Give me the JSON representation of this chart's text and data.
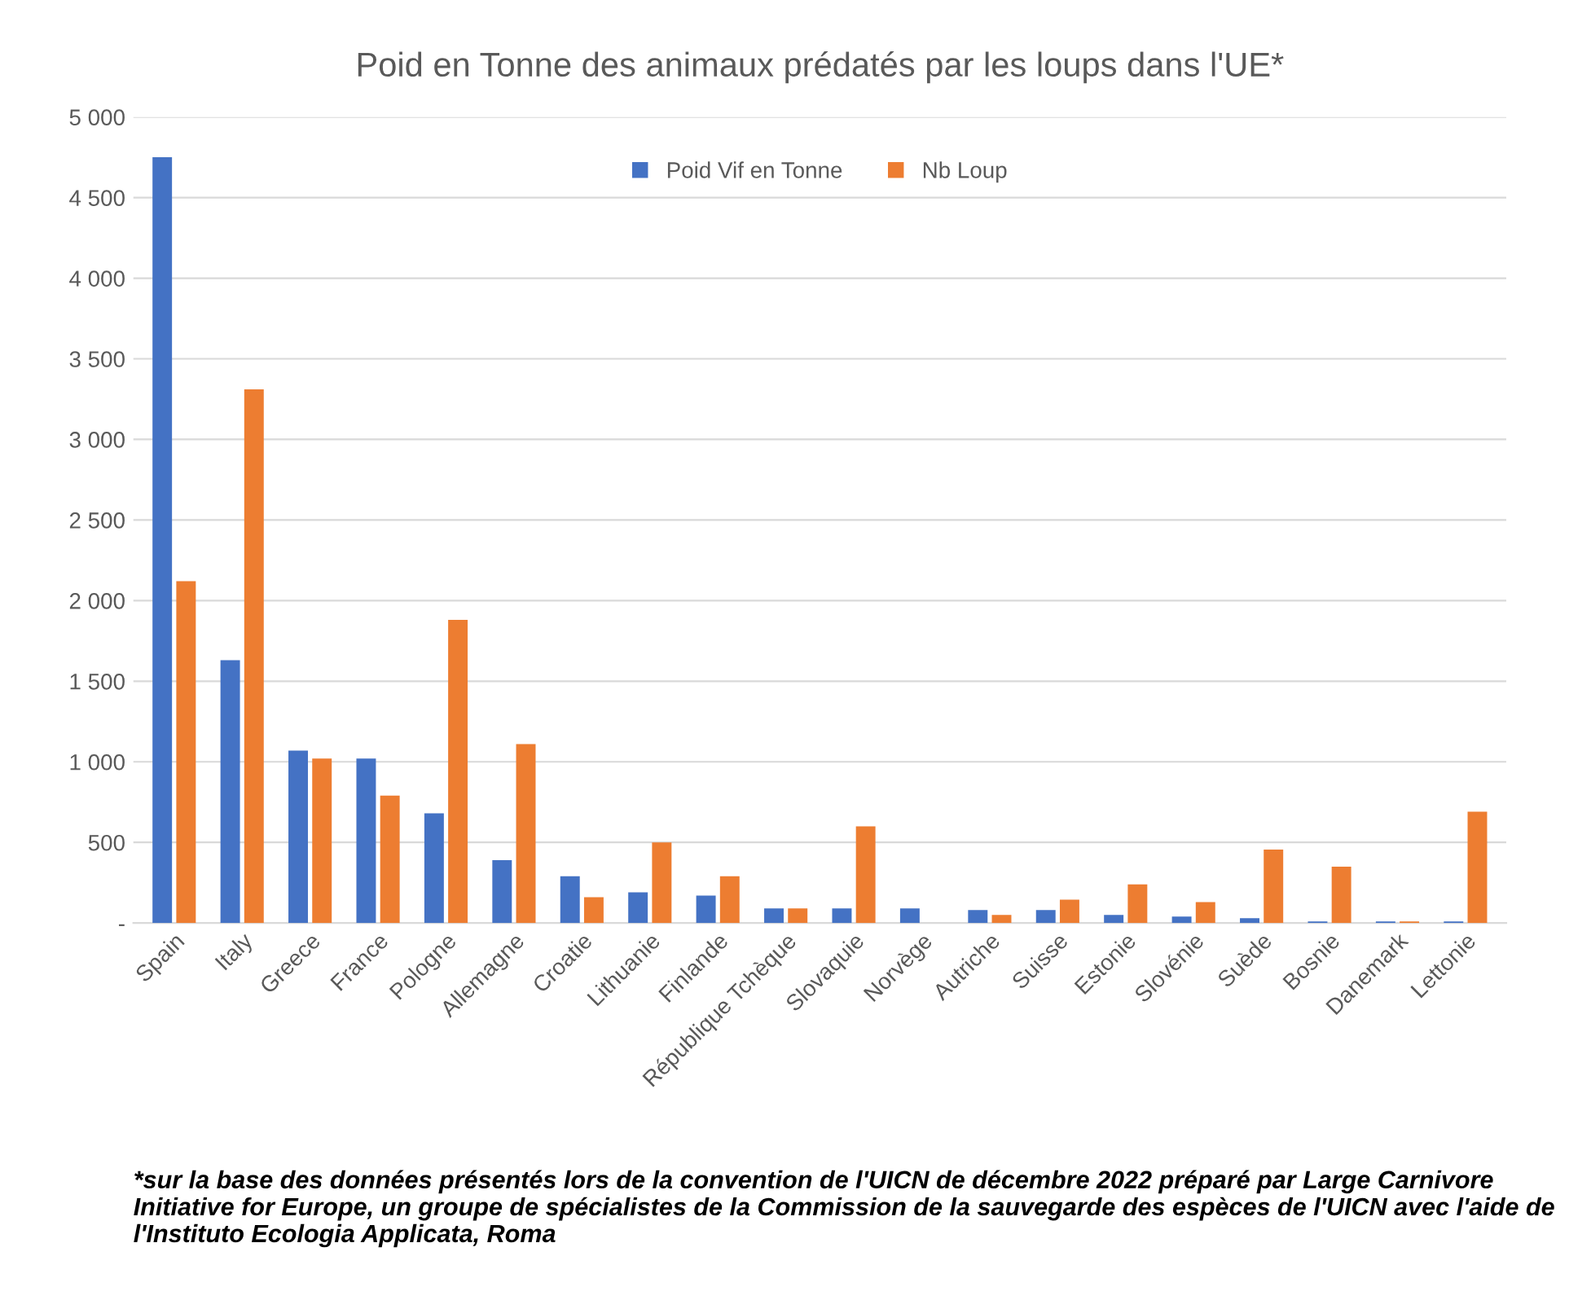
{
  "chart_data": {
    "type": "bar",
    "title": "Poid en Tonne des animaux prédatés par les loups dans l'UE*",
    "categories": [
      "Spain",
      "Italy",
      "Greece",
      "France",
      "Pologne",
      "Allemagne",
      "Croatie",
      "Lithuanie",
      "Finlande",
      "République Tchèque",
      "Slovaquie",
      "Norvège",
      "Autriche",
      "Suisse",
      "Estonie",
      "Slovénie",
      "Suède",
      "Bosnie",
      "Danemark",
      "Lettonie"
    ],
    "series": [
      {
        "name": "Poid Vif en Tonne",
        "color": "#4472c4",
        "values": [
          4750,
          1630,
          1070,
          1020,
          680,
          390,
          290,
          190,
          170,
          90,
          90,
          90,
          80,
          80,
          50,
          40,
          30,
          10,
          10,
          10
        ]
      },
      {
        "name": "Nb Loup",
        "color": "#ed7d31",
        "values": [
          2120,
          3310,
          1020,
          790,
          1880,
          1110,
          160,
          500,
          290,
          90,
          600,
          null,
          50,
          145,
          240,
          130,
          455,
          350,
          10,
          690
        ]
      }
    ],
    "ylim": [
      0,
      5000
    ],
    "yticks": [
      {
        "value": 0,
        "label": "-"
      },
      {
        "value": 500,
        "label": "500"
      },
      {
        "value": 1000,
        "label": "1 000"
      },
      {
        "value": 1500,
        "label": "1 500"
      },
      {
        "value": 2000,
        "label": "2 000"
      },
      {
        "value": 2500,
        "label": "2 500"
      },
      {
        "value": 3000,
        "label": "3 000"
      },
      {
        "value": 3500,
        "label": "3 500"
      },
      {
        "value": 4000,
        "label": "4 000"
      },
      {
        "value": 4500,
        "label": "4 500"
      },
      {
        "value": 5000,
        "label": "5 000"
      }
    ],
    "grid": "y",
    "legend": "top",
    "annotations": [
      "*sur la base des données présentés lors de la convention de l'UICN de décembre 2022 préparé par Large Carnivore Initiative for Europe, un groupe de spécialistes de la Commission de la sauvegarde des espèces de l'UICN avec l'aide de l'Instituto Ecologia Applicata, Roma"
    ]
  }
}
